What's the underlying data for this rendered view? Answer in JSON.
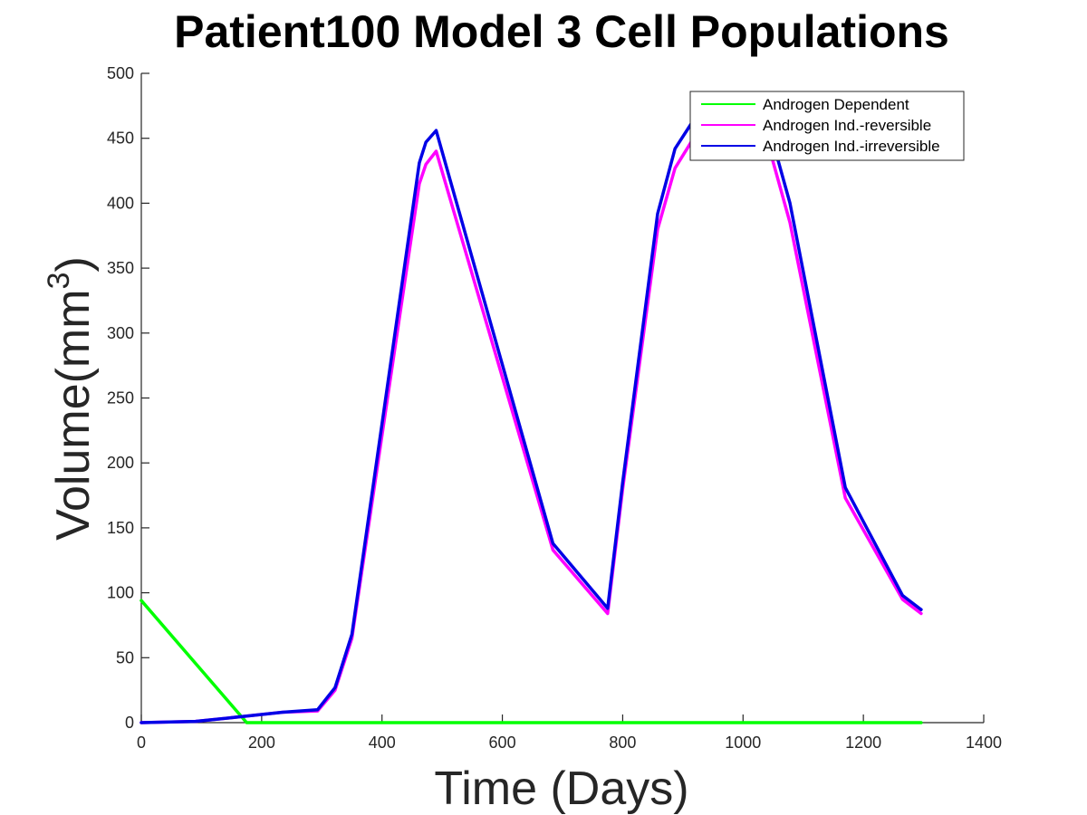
{
  "chart_data": {
    "type": "line",
    "title": "Patient100 Model 3 Cell Populations",
    "xlabel": "Time (Days)",
    "ylabel_main": "Volume(mm",
    "ylabel_sup": "3",
    "ylabel_close": ")",
    "xlim": [
      0,
      1400
    ],
    "ylim": [
      0,
      500
    ],
    "xticks": [
      "0",
      "200",
      "400",
      "600",
      "800",
      "1000",
      "1200",
      "1400"
    ],
    "yticks": [
      "0",
      "50",
      "100",
      "150",
      "200",
      "250",
      "300",
      "350",
      "400",
      "450",
      "500"
    ],
    "grid": false,
    "legend_position": "top-right",
    "series": [
      {
        "name": "Androgen Dependent",
        "color": "#00ff00",
        "x": [
          0,
          175,
          300,
          500,
          800,
          1000,
          1296
        ],
        "y": [
          94,
          0,
          0,
          0,
          0,
          0,
          0
        ]
      },
      {
        "name": "Androgen Ind.-reversible",
        "color": "#ff00ff",
        "x": [
          0,
          90,
          175,
          235,
          293,
          322,
          350,
          462,
          473,
          490,
          684,
          775,
          800,
          858,
          887,
          915,
          1045,
          1078,
          1170,
          1265,
          1296
        ],
        "y": [
          0,
          1,
          5,
          8,
          9,
          25,
          65,
          415,
          430,
          440,
          133,
          84,
          180,
          380,
          427,
          448,
          440,
          385,
          173,
          95,
          84
        ]
      },
      {
        "name": "Androgen Ind.-irreversible",
        "color": "#0000e6",
        "x": [
          0,
          90,
          175,
          235,
          293,
          322,
          350,
          462,
          473,
          490,
          684,
          775,
          800,
          858,
          887,
          915,
          1045,
          1078,
          1170,
          1265,
          1296
        ],
        "y": [
          0,
          1,
          5,
          8,
          10,
          27,
          68,
          431,
          447,
          456,
          138,
          88,
          185,
          392,
          442,
          462,
          455,
          400,
          181,
          98,
          87
        ]
      }
    ]
  }
}
